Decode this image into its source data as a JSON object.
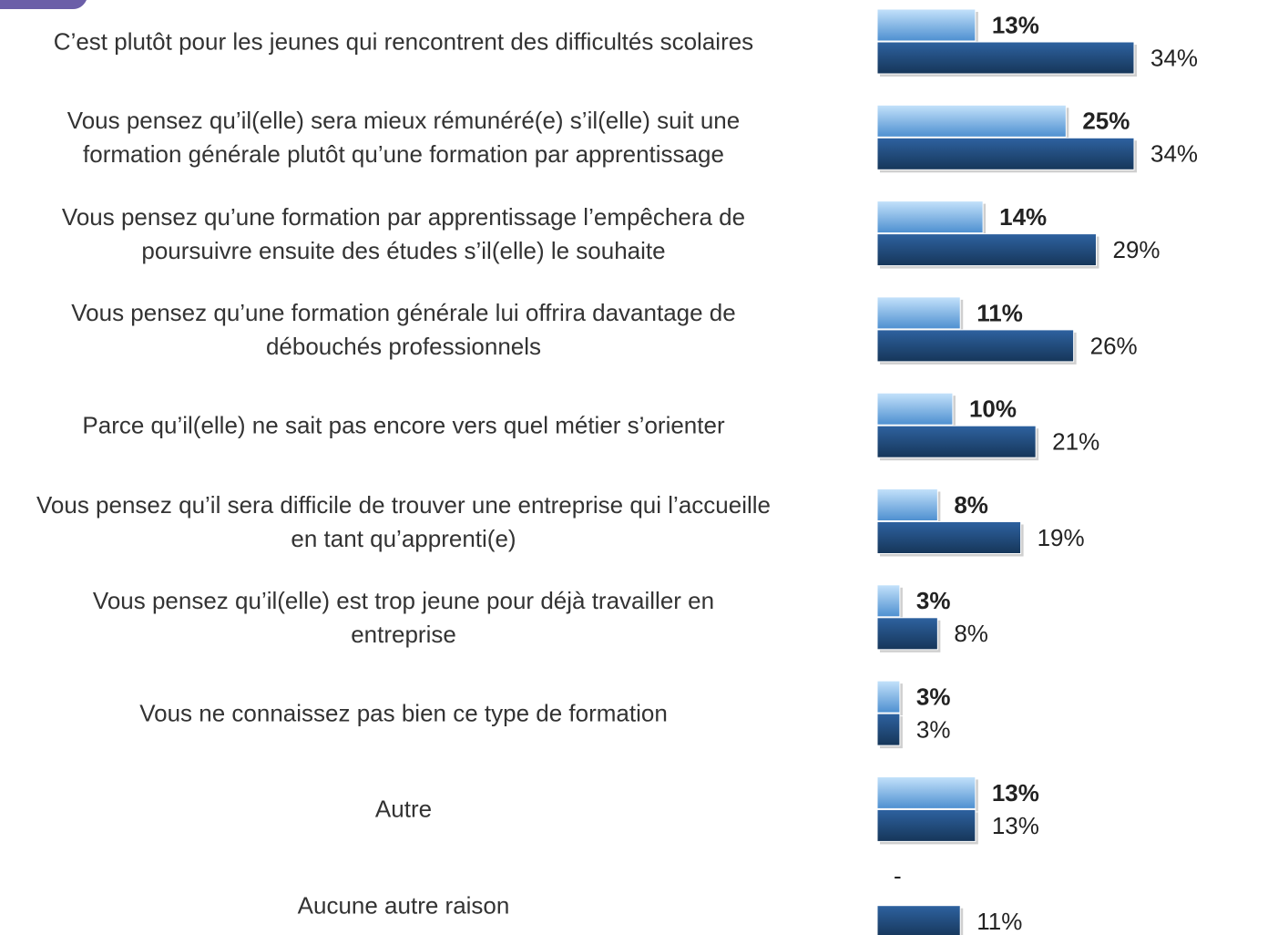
{
  "chart_data": {
    "type": "bar",
    "orientation": "horizontal",
    "categories": [
      "C’est plutôt pour les jeunes qui rencontrent des difficultés scolaires",
      "Vous pensez qu’il(elle) sera mieux rémunéré(e) s’il(elle) suit une\nformation générale plutôt qu’une formation par apprentissage",
      "Vous pensez qu’une formation par apprentissage l’empêchera de\npoursuivre ensuite des études s’il(elle) le souhaite",
      "Vous pensez qu’une formation générale lui offrira davantage de\ndébouchés professionnels",
      "Parce qu’il(elle) ne sait pas encore vers quel métier s’orienter",
      "Vous pensez qu’il sera difficile de trouver une entreprise qui l’accueille\nen tant qu’apprenti(e)",
      "Vous pensez qu’il(elle) est trop jeune pour déjà travailler en\nentreprise",
      "Vous ne connaissez pas bien ce type de formation",
      "Autre",
      "Aucune autre raison"
    ],
    "series": [
      {
        "color": "#6aa8e0",
        "values": [
          13,
          25,
          14,
          11,
          10,
          8,
          3,
          3,
          13,
          null
        ],
        "value_labels": [
          "13%",
          "25%",
          "14%",
          "11%",
          "10%",
          "8%",
          "3%",
          "3%",
          "13%",
          "-"
        ]
      },
      {
        "color": "#1f4a7e",
        "values": [
          34,
          34,
          29,
          26,
          21,
          19,
          8,
          3,
          13,
          11
        ],
        "value_labels": [
          "34%",
          "34%",
          "29%",
          "26%",
          "21%",
          "19%",
          "8%",
          "3%",
          "13%",
          "11%"
        ]
      }
    ]
  }
}
